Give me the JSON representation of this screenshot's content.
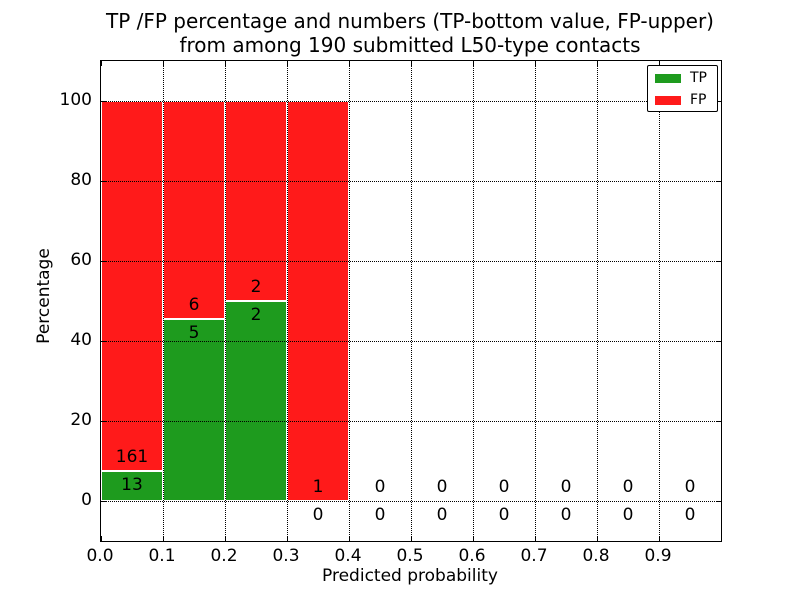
{
  "chart_data": {
    "type": "bar",
    "stacked": true,
    "title_line1": "TP /FP percentage and numbers (TP-bottom value, FP-upper)",
    "title_line2": "from among 190 submitted L50-type contacts",
    "xlabel": "Predicted probability",
    "ylabel": "Percentage",
    "total_contacts": 190,
    "xlim": [
      0.0,
      1.0
    ],
    "ylim": [
      -10,
      110
    ],
    "grid": true,
    "grid_style": "dotted",
    "xticks": [
      "0.0",
      "0.1",
      "0.2",
      "0.3",
      "0.4",
      "0.5",
      "0.6",
      "0.7",
      "0.8",
      "0.9"
    ],
    "xtick_values": [
      0.0,
      0.1,
      0.2,
      0.3,
      0.4,
      0.5,
      0.6,
      0.7,
      0.8,
      0.9
    ],
    "yticks": [
      "0",
      "20",
      "40",
      "60",
      "80",
      "100"
    ],
    "ytick_values": [
      0,
      20,
      40,
      60,
      80,
      100
    ],
    "bin_starts": [
      0.0,
      0.1,
      0.2,
      0.3,
      0.4,
      0.5,
      0.6,
      0.7,
      0.8,
      0.9
    ],
    "bin_width": 0.1,
    "series": [
      {
        "name": "TP",
        "color": "#1E9B1E",
        "counts": [
          13,
          5,
          2,
          0,
          0,
          0,
          0,
          0,
          0,
          0
        ]
      },
      {
        "name": "FP",
        "color": "#FF1A1A",
        "counts": [
          161,
          6,
          2,
          1,
          0,
          0,
          0,
          0,
          0,
          0
        ]
      }
    ],
    "tp_percent_by_bin": [
      7.5,
      45.5,
      50.0,
      0.0,
      0.0,
      0.0,
      0.0,
      0.0,
      0.0,
      0.0
    ],
    "fp_percent_by_bin": [
      92.5,
      54.5,
      50.0,
      100.0,
      0.0,
      0.0,
      0.0,
      0.0,
      0.0,
      0.0
    ],
    "label_offset_units": 3.5,
    "legend": {
      "position": "upper-right",
      "entries": [
        {
          "label": "TP",
          "color": "#1E9B1E"
        },
        {
          "label": "FP",
          "color": "#FF1A1A"
        }
      ]
    }
  }
}
